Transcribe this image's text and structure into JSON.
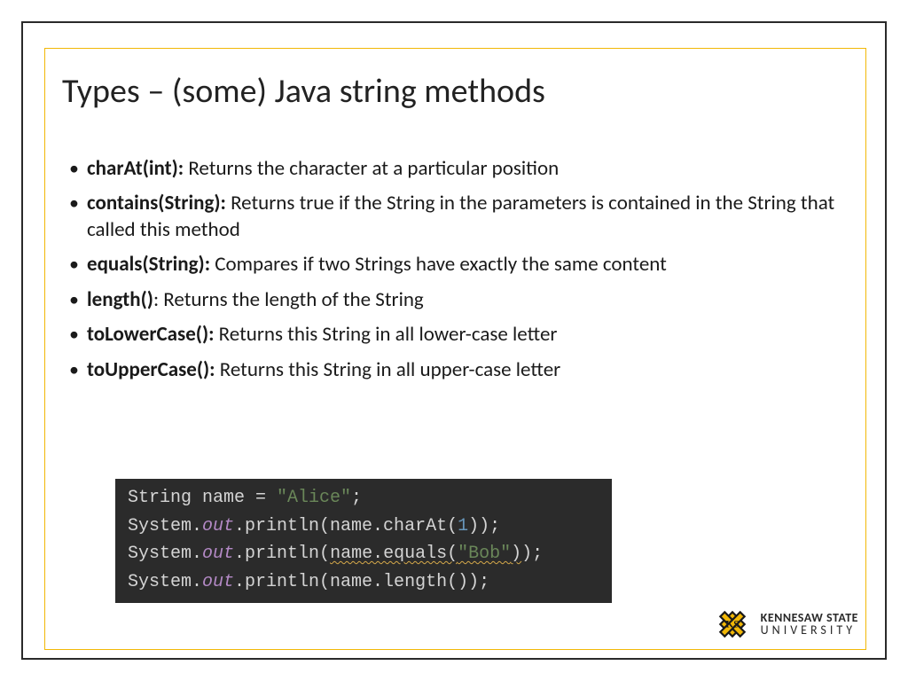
{
  "slide": {
    "title": "Types – (some) Java string methods",
    "bullets": [
      {
        "method": "charAt(int):",
        "desc": " Returns the character at a particular position"
      },
      {
        "method": "contains(String):",
        "desc": " Returns true if the String in the parameters is contained in the String that called this method"
      },
      {
        "method": "equals(String):",
        "desc": " Compares if two Strings have exactly the same content"
      },
      {
        "method": "length()",
        "desc": ": Returns the length of the String"
      },
      {
        "method": "toLowerCase():",
        "desc": " Returns this String in all lower-case letter"
      },
      {
        "method": "toUpperCase():",
        "desc": " Returns this String in all upper-case letter"
      }
    ],
    "code": {
      "lines": [
        {
          "tokens": [
            {
              "t": "String name = ",
              "c": "white"
            },
            {
              "t": "\"Alice\"",
              "c": "str"
            },
            {
              "t": ";",
              "c": "white"
            }
          ]
        },
        {
          "tokens": [
            {
              "t": "System.",
              "c": "white"
            },
            {
              "t": "out",
              "c": "field"
            },
            {
              "t": ".println(name.charAt(",
              "c": "white"
            },
            {
              "t": "1",
              "c": "num"
            },
            {
              "t": "));",
              "c": "white"
            }
          ]
        },
        {
          "tokens": [
            {
              "t": "System.",
              "c": "white"
            },
            {
              "t": "out",
              "c": "field"
            },
            {
              "t": ".println(",
              "c": "white"
            },
            {
              "t": "name.equals(",
              "c": "white",
              "wavy": true
            },
            {
              "t": "\"Bob\"",
              "c": "str",
              "wavy": true
            },
            {
              "t": ")",
              "c": "white",
              "wavy": true
            },
            {
              "t": ");",
              "c": "white"
            }
          ]
        },
        {
          "tokens": [
            {
              "t": "System.",
              "c": "white"
            },
            {
              "t": "out",
              "c": "field"
            },
            {
              "t": ".println(name.length());",
              "c": "white"
            }
          ]
        }
      ],
      "bg_color": "#2b2b2b",
      "text_color": "#bfc7cf",
      "string_color": "#6a8759",
      "field_color": "#b389c5",
      "number_color": "#6897bb",
      "fontsize": 20
    },
    "frame": {
      "outer_color": "#2a2a2a",
      "inner_color": "#f2b807"
    },
    "logo": {
      "line1": "KENNESAW STATE",
      "line2": "UNIVERSITY",
      "mark_color": "#f2b807",
      "mark_stroke": "#1a1a1a"
    }
  }
}
